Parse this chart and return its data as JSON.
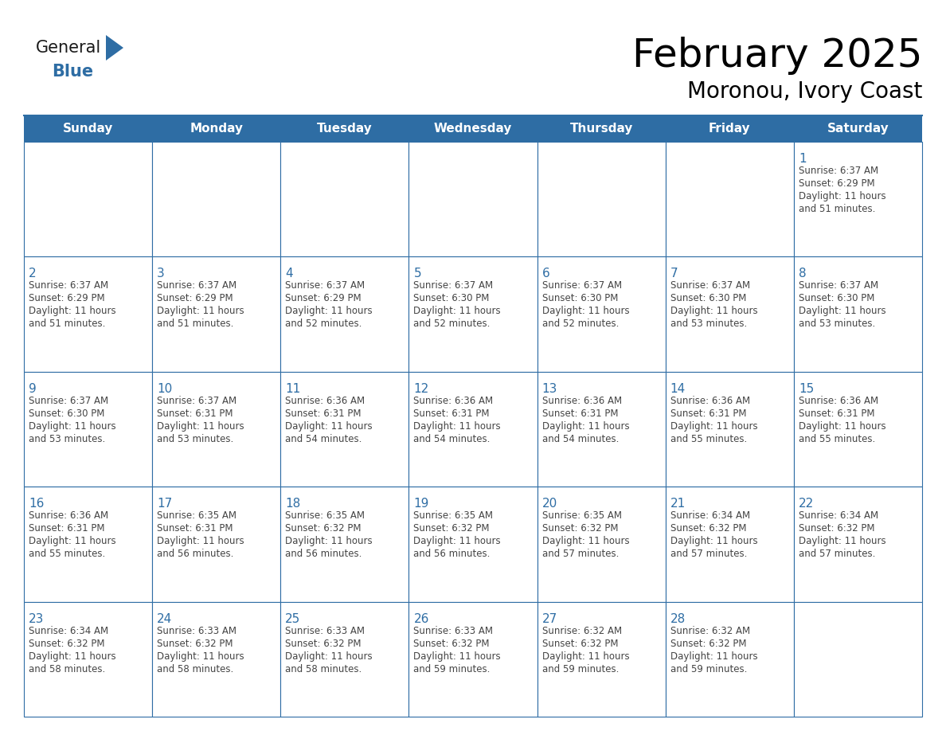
{
  "title": "February 2025",
  "subtitle": "Moronou, Ivory Coast",
  "header_bg": "#2E6DA4",
  "header_text_color": "#FFFFFF",
  "cell_border_color": "#2E6DA4",
  "day_number_color": "#2E6DA4",
  "cell_text_color": "#444444",
  "days_of_week": [
    "Sunday",
    "Monday",
    "Tuesday",
    "Wednesday",
    "Thursday",
    "Friday",
    "Saturday"
  ],
  "num_cols": 7,
  "num_rows": 5,
  "calendar_data": [
    {
      "day": 1,
      "row": 0,
      "col": 6,
      "sunrise": "6:37 AM",
      "sunset": "6:29 PM",
      "daylight_hours": 11,
      "daylight_minutes": 51
    },
    {
      "day": 2,
      "row": 1,
      "col": 0,
      "sunrise": "6:37 AM",
      "sunset": "6:29 PM",
      "daylight_hours": 11,
      "daylight_minutes": 51
    },
    {
      "day": 3,
      "row": 1,
      "col": 1,
      "sunrise": "6:37 AM",
      "sunset": "6:29 PM",
      "daylight_hours": 11,
      "daylight_minutes": 51
    },
    {
      "day": 4,
      "row": 1,
      "col": 2,
      "sunrise": "6:37 AM",
      "sunset": "6:29 PM",
      "daylight_hours": 11,
      "daylight_minutes": 52
    },
    {
      "day": 5,
      "row": 1,
      "col": 3,
      "sunrise": "6:37 AM",
      "sunset": "6:30 PM",
      "daylight_hours": 11,
      "daylight_minutes": 52
    },
    {
      "day": 6,
      "row": 1,
      "col": 4,
      "sunrise": "6:37 AM",
      "sunset": "6:30 PM",
      "daylight_hours": 11,
      "daylight_minutes": 52
    },
    {
      "day": 7,
      "row": 1,
      "col": 5,
      "sunrise": "6:37 AM",
      "sunset": "6:30 PM",
      "daylight_hours": 11,
      "daylight_minutes": 53
    },
    {
      "day": 8,
      "row": 1,
      "col": 6,
      "sunrise": "6:37 AM",
      "sunset": "6:30 PM",
      "daylight_hours": 11,
      "daylight_minutes": 53
    },
    {
      "day": 9,
      "row": 2,
      "col": 0,
      "sunrise": "6:37 AM",
      "sunset": "6:30 PM",
      "daylight_hours": 11,
      "daylight_minutes": 53
    },
    {
      "day": 10,
      "row": 2,
      "col": 1,
      "sunrise": "6:37 AM",
      "sunset": "6:31 PM",
      "daylight_hours": 11,
      "daylight_minutes": 53
    },
    {
      "day": 11,
      "row": 2,
      "col": 2,
      "sunrise": "6:36 AM",
      "sunset": "6:31 PM",
      "daylight_hours": 11,
      "daylight_minutes": 54
    },
    {
      "day": 12,
      "row": 2,
      "col": 3,
      "sunrise": "6:36 AM",
      "sunset": "6:31 PM",
      "daylight_hours": 11,
      "daylight_minutes": 54
    },
    {
      "day": 13,
      "row": 2,
      "col": 4,
      "sunrise": "6:36 AM",
      "sunset": "6:31 PM",
      "daylight_hours": 11,
      "daylight_minutes": 54
    },
    {
      "day": 14,
      "row": 2,
      "col": 5,
      "sunrise": "6:36 AM",
      "sunset": "6:31 PM",
      "daylight_hours": 11,
      "daylight_minutes": 55
    },
    {
      "day": 15,
      "row": 2,
      "col": 6,
      "sunrise": "6:36 AM",
      "sunset": "6:31 PM",
      "daylight_hours": 11,
      "daylight_minutes": 55
    },
    {
      "day": 16,
      "row": 3,
      "col": 0,
      "sunrise": "6:36 AM",
      "sunset": "6:31 PM",
      "daylight_hours": 11,
      "daylight_minutes": 55
    },
    {
      "day": 17,
      "row": 3,
      "col": 1,
      "sunrise": "6:35 AM",
      "sunset": "6:31 PM",
      "daylight_hours": 11,
      "daylight_minutes": 56
    },
    {
      "day": 18,
      "row": 3,
      "col": 2,
      "sunrise": "6:35 AM",
      "sunset": "6:32 PM",
      "daylight_hours": 11,
      "daylight_minutes": 56
    },
    {
      "day": 19,
      "row": 3,
      "col": 3,
      "sunrise": "6:35 AM",
      "sunset": "6:32 PM",
      "daylight_hours": 11,
      "daylight_minutes": 56
    },
    {
      "day": 20,
      "row": 3,
      "col": 4,
      "sunrise": "6:35 AM",
      "sunset": "6:32 PM",
      "daylight_hours": 11,
      "daylight_minutes": 57
    },
    {
      "day": 21,
      "row": 3,
      "col": 5,
      "sunrise": "6:34 AM",
      "sunset": "6:32 PM",
      "daylight_hours": 11,
      "daylight_minutes": 57
    },
    {
      "day": 22,
      "row": 3,
      "col": 6,
      "sunrise": "6:34 AM",
      "sunset": "6:32 PM",
      "daylight_hours": 11,
      "daylight_minutes": 57
    },
    {
      "day": 23,
      "row": 4,
      "col": 0,
      "sunrise": "6:34 AM",
      "sunset": "6:32 PM",
      "daylight_hours": 11,
      "daylight_minutes": 58
    },
    {
      "day": 24,
      "row": 4,
      "col": 1,
      "sunrise": "6:33 AM",
      "sunset": "6:32 PM",
      "daylight_hours": 11,
      "daylight_minutes": 58
    },
    {
      "day": 25,
      "row": 4,
      "col": 2,
      "sunrise": "6:33 AM",
      "sunset": "6:32 PM",
      "daylight_hours": 11,
      "daylight_minutes": 58
    },
    {
      "day": 26,
      "row": 4,
      "col": 3,
      "sunrise": "6:33 AM",
      "sunset": "6:32 PM",
      "daylight_hours": 11,
      "daylight_minutes": 59
    },
    {
      "day": 27,
      "row": 4,
      "col": 4,
      "sunrise": "6:32 AM",
      "sunset": "6:32 PM",
      "daylight_hours": 11,
      "daylight_minutes": 59
    },
    {
      "day": 28,
      "row": 4,
      "col": 5,
      "sunrise": "6:32 AM",
      "sunset": "6:32 PM",
      "daylight_hours": 11,
      "daylight_minutes": 59
    }
  ],
  "logo_text_general": "General",
  "logo_text_blue": "Blue",
  "logo_color_general": "#1a1a1a",
  "logo_color_blue": "#2E6DA4",
  "logo_triangle_color": "#2E6DA4",
  "title_fontsize": 36,
  "subtitle_fontsize": 20,
  "header_fontsize": 11,
  "day_num_fontsize": 11,
  "cell_text_fontsize": 8.5
}
